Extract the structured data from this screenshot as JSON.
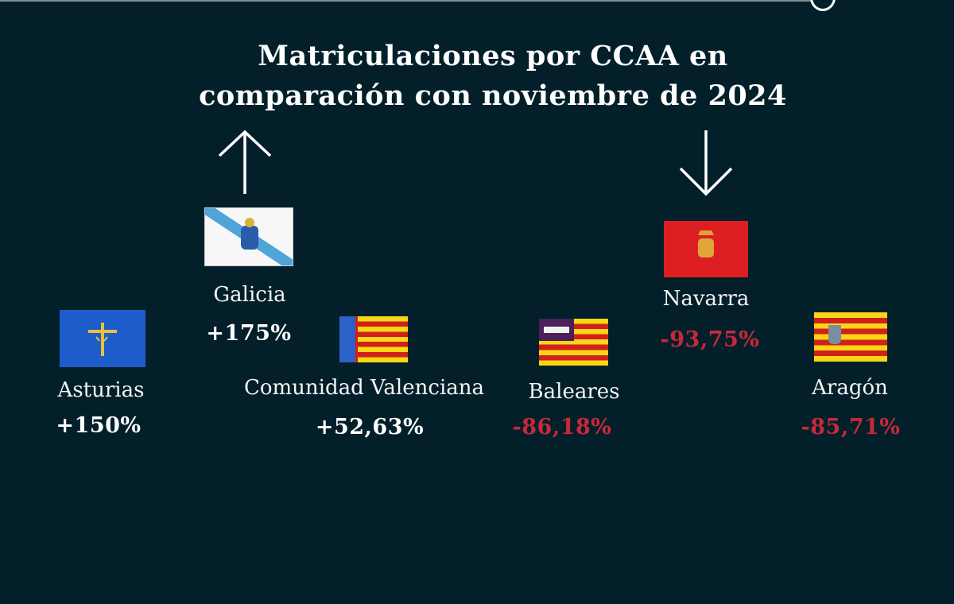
{
  "title": {
    "line1": "Matriculaciones por CCAA en",
    "line2": "comparación con noviembre de 2024"
  },
  "colors": {
    "background": "#03202a",
    "increase": "#ffffff",
    "decrease": "#c9283a"
  },
  "increase_icon": "arrow-up-icon",
  "decrease_icon": "arrow-down-icon",
  "regions": [
    {
      "name": "Asturias",
      "change": "+150%",
      "flag": "asturias-flag-icon"
    },
    {
      "name": "Galicia",
      "change": "+175%",
      "flag": "galicia-flag-icon"
    },
    {
      "name": "Comunidad Valenciana",
      "change": "+52,63%",
      "flag": "valencia-flag-icon"
    },
    {
      "name": "Baleares",
      "change": "-86,18%",
      "flag": "baleares-flag-icon"
    },
    {
      "name": "Navarra",
      "change": "-93,75%",
      "flag": "navarra-flag-icon"
    },
    {
      "name": "Aragón",
      "change": "-85,71%",
      "flag": "aragon-flag-icon"
    }
  ]
}
